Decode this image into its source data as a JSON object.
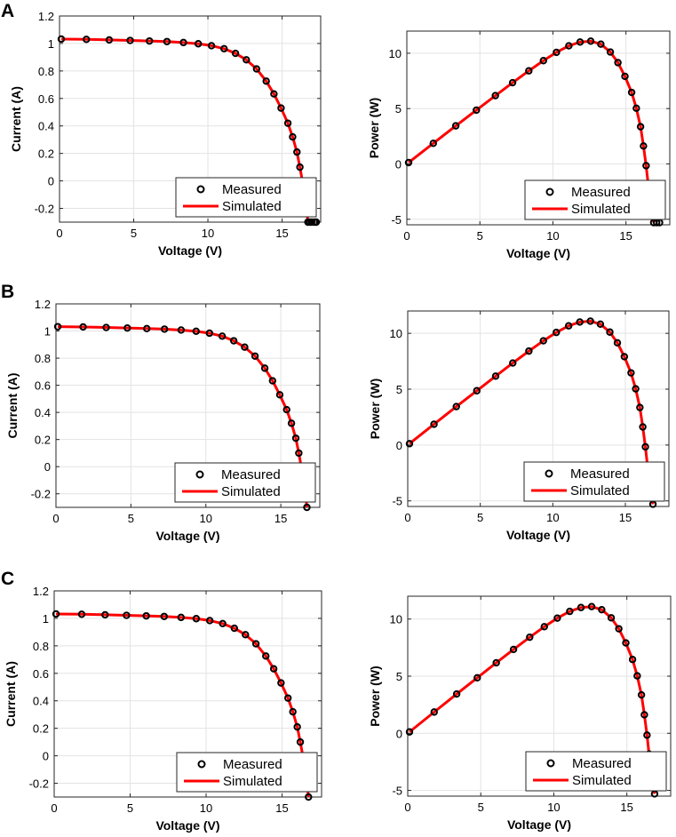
{
  "panel_labels": [
    "A",
    "B",
    "C"
  ],
  "colors": {
    "simulated": "#ff0000",
    "measured": "#000000",
    "grid": "#e3e3e3",
    "axes": "#262626"
  },
  "chart_data": [
    {
      "type": "line",
      "panel": "A",
      "xlabel": "Voltage (V)",
      "ylabel": "Current (A)",
      "xlim": [
        0,
        17.6
      ],
      "ylim": [
        -0.3,
        1.2
      ],
      "xticks": [
        0,
        5,
        10,
        15
      ],
      "yticks": [
        -0.2,
        0,
        0.2,
        0.4,
        0.6,
        0.8,
        1,
        1.2
      ],
      "ytick_labels": [
        "-0.2",
        "0",
        "0.2",
        "0.4",
        "0.6",
        "0.8",
        "1",
        "1.2"
      ],
      "legend": [
        "Measured",
        "Simulated"
      ],
      "legend_position": "bottom-right",
      "series": [
        {
          "name": "Measured",
          "style": "markers",
          "x": [
            0.12,
            1.81,
            3.35,
            4.76,
            6.06,
            7.24,
            8.35,
            9.35,
            10.24,
            11.09,
            11.86,
            12.59,
            13.28,
            13.93,
            14.45,
            14.93,
            15.39,
            15.71,
            16.0,
            16.2,
            16.38,
            16.52,
            16.65,
            16.74,
            16.86,
            17.0,
            17.18,
            17.3
          ],
          "y": [
            1.032,
            1.03,
            1.026,
            1.022,
            1.018,
            1.014,
            1.007,
            0.998,
            0.984,
            0.962,
            0.928,
            0.881,
            0.815,
            0.726,
            0.633,
            0.53,
            0.42,
            0.32,
            0.21,
            0.1,
            -0.01,
            -0.11,
            -0.2,
            -0.3,
            -0.3,
            -0.3,
            -0.3,
            -0.3
          ]
        },
        {
          "name": "Simulated",
          "style": "line",
          "x": [
            0.12,
            1.81,
            3.35,
            4.76,
            6.06,
            7.24,
            8.35,
            9.35,
            10.24,
            11.09,
            11.86,
            12.59,
            13.28,
            13.93,
            14.45,
            14.93,
            15.39,
            15.71,
            16.0,
            16.2,
            16.38,
            16.52,
            16.65,
            16.74
          ],
          "y": [
            1.032,
            1.03,
            1.026,
            1.022,
            1.018,
            1.014,
            1.007,
            0.998,
            0.984,
            0.962,
            0.928,
            0.881,
            0.815,
            0.726,
            0.633,
            0.53,
            0.42,
            0.32,
            0.21,
            0.1,
            -0.01,
            -0.11,
            -0.2,
            -0.3
          ]
        }
      ]
    },
    {
      "type": "line",
      "panel": "A",
      "xlabel": "Voltage (V)",
      "ylabel": "Power (W)",
      "xlim": [
        0,
        18
      ],
      "ylim": [
        -5.5,
        12
      ],
      "xticks": [
        0,
        5,
        10,
        15
      ],
      "yticks": [
        -5,
        0,
        5,
        10
      ],
      "ytick_labels": [
        "-5",
        "0",
        "5",
        "10"
      ],
      "legend": [
        "Measured",
        "Simulated"
      ],
      "legend_position": "bottom-right",
      "series": [
        {
          "name": "Measured",
          "style": "markers",
          "x": [
            0.12,
            1.81,
            3.35,
            4.76,
            6.06,
            7.24,
            8.35,
            9.35,
            10.24,
            11.09,
            11.86,
            12.59,
            13.28,
            13.93,
            14.45,
            14.93,
            15.39,
            15.71,
            16.0,
            16.2,
            16.38,
            16.52,
            16.65,
            16.9,
            17.1,
            17.3
          ],
          "y": [
            0.12,
            1.86,
            3.44,
            4.86,
            6.17,
            7.34,
            8.41,
            9.33,
            10.08,
            10.67,
            11.01,
            11.09,
            10.82,
            10.11,
            9.15,
            7.91,
            6.46,
            5.03,
            3.36,
            1.62,
            -0.16,
            -1.82,
            -3.33,
            -5.3,
            -5.3,
            -5.3
          ]
        },
        {
          "name": "Simulated",
          "style": "line",
          "x": [
            0.12,
            1.81,
            3.35,
            4.76,
            6.06,
            7.24,
            8.35,
            9.35,
            10.24,
            11.09,
            11.86,
            12.59,
            13.28,
            13.93,
            14.45,
            14.93,
            15.39,
            15.71,
            16.0,
            16.2,
            16.38,
            16.52,
            16.65,
            16.9
          ],
          "y": [
            0.12,
            1.86,
            3.44,
            4.86,
            6.17,
            7.34,
            8.41,
            9.33,
            10.08,
            10.67,
            11.01,
            11.09,
            10.82,
            10.11,
            9.15,
            7.91,
            6.46,
            5.03,
            3.36,
            1.62,
            -0.16,
            -1.82,
            -3.33,
            -5.3
          ]
        }
      ]
    },
    {
      "type": "line",
      "panel": "B",
      "xlabel": "Voltage (V)",
      "ylabel": "Current (A)",
      "xlim": [
        0,
        17.6
      ],
      "ylim": [
        -0.3,
        1.2
      ],
      "xticks": [
        0,
        5,
        10,
        15
      ],
      "yticks": [
        -0.2,
        0,
        0.2,
        0.4,
        0.6,
        0.8,
        1,
        1.2
      ],
      "ytick_labels": [
        "-0.2",
        "0",
        "0.2",
        "0.4",
        "0.6",
        "0.8",
        "1",
        "1.2"
      ],
      "legend": [
        "Measured",
        "Simulated"
      ],
      "legend_position": "bottom-right",
      "series": [
        {
          "name": "Measured",
          "style": "markers",
          "x": [
            0.12,
            1.81,
            3.35,
            4.76,
            6.06,
            7.24,
            8.35,
            9.35,
            10.24,
            11.09,
            11.86,
            12.59,
            13.28,
            13.93,
            14.45,
            14.93,
            15.39,
            15.71,
            16.0,
            16.2,
            16.38,
            16.52,
            16.65,
            16.74
          ],
          "y": [
            1.032,
            1.03,
            1.026,
            1.022,
            1.018,
            1.014,
            1.007,
            0.998,
            0.984,
            0.962,
            0.928,
            0.881,
            0.815,
            0.726,
            0.633,
            0.53,
            0.42,
            0.32,
            0.21,
            0.1,
            -0.01,
            -0.11,
            -0.2,
            -0.3
          ]
        },
        {
          "name": "Simulated",
          "style": "line",
          "x": [
            0.12,
            1.81,
            3.35,
            4.76,
            6.06,
            7.24,
            8.35,
            9.35,
            10.24,
            11.09,
            11.86,
            12.59,
            13.28,
            13.93,
            14.45,
            14.93,
            15.39,
            15.71,
            16.0,
            16.2,
            16.38,
            16.52,
            16.65,
            16.74
          ],
          "y": [
            1.032,
            1.03,
            1.026,
            1.022,
            1.018,
            1.014,
            1.007,
            0.998,
            0.984,
            0.962,
            0.928,
            0.881,
            0.815,
            0.726,
            0.633,
            0.53,
            0.42,
            0.32,
            0.21,
            0.1,
            -0.01,
            -0.11,
            -0.2,
            -0.3
          ]
        }
      ]
    },
    {
      "type": "line",
      "panel": "B",
      "xlabel": "Voltage (V)",
      "ylabel": "Power (W)",
      "xlim": [
        0,
        18
      ],
      "ylim": [
        -5.5,
        12
      ],
      "xticks": [
        0,
        5,
        10,
        15
      ],
      "yticks": [
        -5,
        0,
        5,
        10
      ],
      "ytick_labels": [
        "-5",
        "0",
        "5",
        "10"
      ],
      "legend": [
        "Measured",
        "Simulated"
      ],
      "legend_position": "bottom-right",
      "series": [
        {
          "name": "Measured",
          "style": "markers",
          "x": [
            0.12,
            1.81,
            3.35,
            4.76,
            6.06,
            7.24,
            8.35,
            9.35,
            10.24,
            11.09,
            11.86,
            12.59,
            13.28,
            13.93,
            14.45,
            14.93,
            15.39,
            15.71,
            16.0,
            16.2,
            16.38,
            16.52,
            16.65,
            16.9
          ],
          "y": [
            0.12,
            1.86,
            3.44,
            4.86,
            6.17,
            7.34,
            8.41,
            9.33,
            10.08,
            10.67,
            11.01,
            11.09,
            10.82,
            10.11,
            9.15,
            7.91,
            6.46,
            5.03,
            3.36,
            1.62,
            -0.16,
            -1.82,
            -3.33,
            -5.3
          ]
        },
        {
          "name": "Simulated",
          "style": "line",
          "x": [
            0.12,
            1.81,
            3.35,
            4.76,
            6.06,
            7.24,
            8.35,
            9.35,
            10.24,
            11.09,
            11.86,
            12.59,
            13.28,
            13.93,
            14.45,
            14.93,
            15.39,
            15.71,
            16.0,
            16.2,
            16.38,
            16.52,
            16.65,
            16.9
          ],
          "y": [
            0.12,
            1.86,
            3.44,
            4.86,
            6.17,
            7.34,
            8.41,
            9.33,
            10.08,
            10.67,
            11.01,
            11.09,
            10.82,
            10.11,
            9.15,
            7.91,
            6.46,
            5.03,
            3.36,
            1.62,
            -0.16,
            -1.82,
            -3.33,
            -5.3
          ]
        }
      ]
    },
    {
      "type": "line",
      "panel": "C",
      "xlabel": "Voltage (V)",
      "ylabel": "Current (A)",
      "xlim": [
        0,
        17.6
      ],
      "ylim": [
        -0.3,
        1.2
      ],
      "xticks": [
        0,
        5,
        10,
        15
      ],
      "yticks": [
        -0.2,
        0,
        0.2,
        0.4,
        0.6,
        0.8,
        1,
        1.2
      ],
      "ytick_labels": [
        "-0.2",
        "0",
        "0.2",
        "0.4",
        "0.6",
        "0.8",
        "1",
        "1.2"
      ],
      "legend": [
        "Measured",
        "Simulated"
      ],
      "legend_position": "bottom-right",
      "series": [
        {
          "name": "Measured",
          "style": "markers",
          "x": [
            0.12,
            1.81,
            3.35,
            4.76,
            6.06,
            7.24,
            8.35,
            9.35,
            10.24,
            11.09,
            11.86,
            12.59,
            13.28,
            13.93,
            14.45,
            14.93,
            15.39,
            15.71,
            16.0,
            16.2,
            16.38,
            16.52,
            16.65,
            16.74
          ],
          "y": [
            1.032,
            1.03,
            1.026,
            1.022,
            1.018,
            1.014,
            1.007,
            0.998,
            0.984,
            0.962,
            0.928,
            0.881,
            0.815,
            0.726,
            0.633,
            0.53,
            0.42,
            0.32,
            0.21,
            0.1,
            -0.01,
            -0.11,
            -0.2,
            -0.3
          ]
        },
        {
          "name": "Simulated",
          "style": "line",
          "x": [
            0.12,
            1.81,
            3.35,
            4.76,
            6.06,
            7.24,
            8.35,
            9.35,
            10.24,
            11.09,
            11.86,
            12.59,
            13.28,
            13.93,
            14.45,
            14.93,
            15.39,
            15.71,
            16.0,
            16.2,
            16.38,
            16.52,
            16.65,
            16.74
          ],
          "y": [
            1.032,
            1.03,
            1.026,
            1.022,
            1.018,
            1.014,
            1.007,
            0.998,
            0.984,
            0.962,
            0.928,
            0.881,
            0.815,
            0.726,
            0.633,
            0.53,
            0.42,
            0.32,
            0.21,
            0.1,
            -0.01,
            -0.11,
            -0.2,
            -0.3
          ]
        }
      ]
    },
    {
      "type": "line",
      "panel": "C",
      "xlabel": "Voltage (V)",
      "ylabel": "Power (W)",
      "xlim": [
        0,
        18
      ],
      "ylim": [
        -5.5,
        12
      ],
      "xticks": [
        0,
        5,
        10,
        15
      ],
      "yticks": [
        -5,
        0,
        5,
        10
      ],
      "ytick_labels": [
        "-5",
        "0",
        "5",
        "10"
      ],
      "legend": [
        "Measured",
        "Simulated"
      ],
      "legend_position": "bottom-right",
      "series": [
        {
          "name": "Measured",
          "style": "markers",
          "x": [
            0.12,
            1.81,
            3.35,
            4.76,
            6.06,
            7.24,
            8.35,
            9.35,
            10.24,
            11.09,
            11.86,
            12.59,
            13.28,
            13.93,
            14.45,
            14.93,
            15.39,
            15.71,
            16.0,
            16.2,
            16.38,
            16.52,
            16.65,
            16.9
          ],
          "y": [
            0.12,
            1.86,
            3.44,
            4.86,
            6.17,
            7.34,
            8.41,
            9.33,
            10.08,
            10.67,
            11.01,
            11.09,
            10.82,
            10.11,
            9.15,
            7.91,
            6.46,
            5.03,
            3.36,
            1.62,
            -0.16,
            -1.82,
            -3.33,
            -5.3
          ]
        },
        {
          "name": "Simulated",
          "style": "line",
          "x": [
            0.12,
            1.81,
            3.35,
            4.76,
            6.06,
            7.24,
            8.35,
            9.35,
            10.24,
            11.09,
            11.86,
            12.59,
            13.28,
            13.93,
            14.45,
            14.93,
            15.39,
            15.71,
            16.0,
            16.2,
            16.38,
            16.52,
            16.65,
            16.9
          ],
          "y": [
            0.12,
            1.86,
            3.44,
            4.86,
            6.17,
            7.34,
            8.41,
            9.33,
            10.08,
            10.67,
            11.01,
            11.09,
            10.82,
            10.11,
            9.15,
            7.91,
            6.46,
            5.03,
            3.36,
            1.62,
            -0.16,
            -1.82,
            -3.33,
            -5.3
          ]
        }
      ]
    }
  ]
}
